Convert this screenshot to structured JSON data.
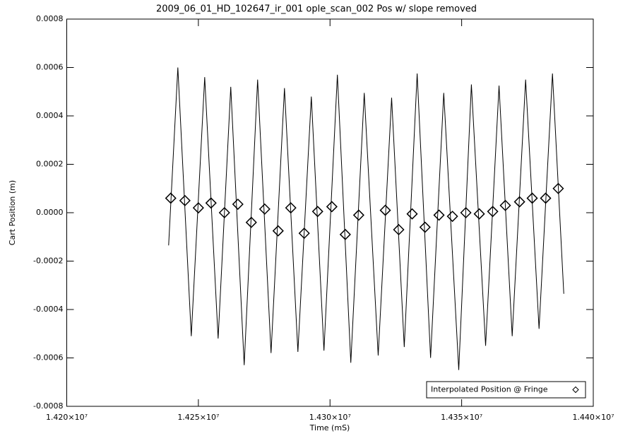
{
  "chart_data": {
    "type": "line",
    "title": "2009_06_01_HD_102647_ir_001 ople_scan_002 Pos w/ slope removed",
    "x_label": "Time (mS)",
    "y_label": "Cart Position (m)",
    "xlim": [
      14200000,
      14400000
    ],
    "xticks": [
      {
        "value": 14200000,
        "label": "1.420×10⁷"
      },
      {
        "value": 14250000,
        "label": "1.425×10⁷"
      },
      {
        "value": 14300000,
        "label": "1.430×10⁷"
      },
      {
        "value": 14350000,
        "label": "1.435×10⁷"
      },
      {
        "value": 14400000,
        "label": "1.440×10⁷"
      }
    ],
    "ylim": [
      -0.0008,
      0.0008
    ],
    "yticks": [
      -0.0008,
      -0.0006,
      -0.0004,
      -0.0002,
      {
        "value": 0,
        "label": "0.0000"
      },
      0.0002,
      0.0004,
      0.0006,
      0.0008
    ],
    "legend": "lower right",
    "series": [
      {
        "style": "line",
        "color": "#000000",
        "x": [
          14238700,
          14242200,
          14247300,
          14252400,
          14257500,
          14262300,
          14267400,
          14272500,
          14277600,
          14282700,
          14287800,
          14292900,
          14297700,
          14302800,
          14307900,
          14313000,
          14318300,
          14323400,
          14328200,
          14333100,
          14338200,
          14343200,
          14348900,
          14353700,
          14359100,
          14364200,
          14369200,
          14374300,
          14379400,
          14384500,
          14388800
        ],
        "values": [
          -0.000135,
          0.0006,
          -0.00051,
          0.00056,
          -0.00052,
          0.00052,
          -0.00063,
          0.00055,
          -0.00058,
          0.000515,
          -0.000575,
          0.00048,
          -0.00057,
          0.00057,
          -0.00062,
          0.000495,
          -0.00059,
          0.000475,
          -0.000555,
          0.000575,
          -0.0006,
          0.000495,
          -0.00065,
          0.00053,
          -0.00055,
          0.000525,
          -0.00051,
          0.00055,
          -0.00048,
          0.000575,
          -0.000335
        ]
      },
      {
        "name": "Interpolated Position @ Fringe",
        "style": "marker",
        "marker": "diamond",
        "color": "#000000",
        "x": [
          14239500,
          14244900,
          14250000,
          14254800,
          14259900,
          14265000,
          14270100,
          14275200,
          14280300,
          14285100,
          14290200,
          14295300,
          14300700,
          14305800,
          14310900,
          14321000,
          14326100,
          14331200,
          14336100,
          14341400,
          14346500,
          14351600,
          14356700,
          14361800,
          14366600,
          14372000,
          14376800,
          14381900,
          14386700
        ],
        "values": [
          6e-05,
          5e-05,
          2e-05,
          4e-05,
          0,
          3.5e-05,
          -4e-05,
          1.5e-05,
          -7.5e-05,
          2e-05,
          -8.5e-05,
          5e-06,
          2.5e-05,
          -9e-05,
          -1e-05,
          1e-05,
          -7e-05,
          -5e-06,
          -6e-05,
          -1e-05,
          -1.5e-05,
          0,
          -5e-06,
          5e-06,
          3e-05,
          4.5e-05,
          6e-05,
          6e-05,
          0.0001
        ]
      }
    ]
  }
}
